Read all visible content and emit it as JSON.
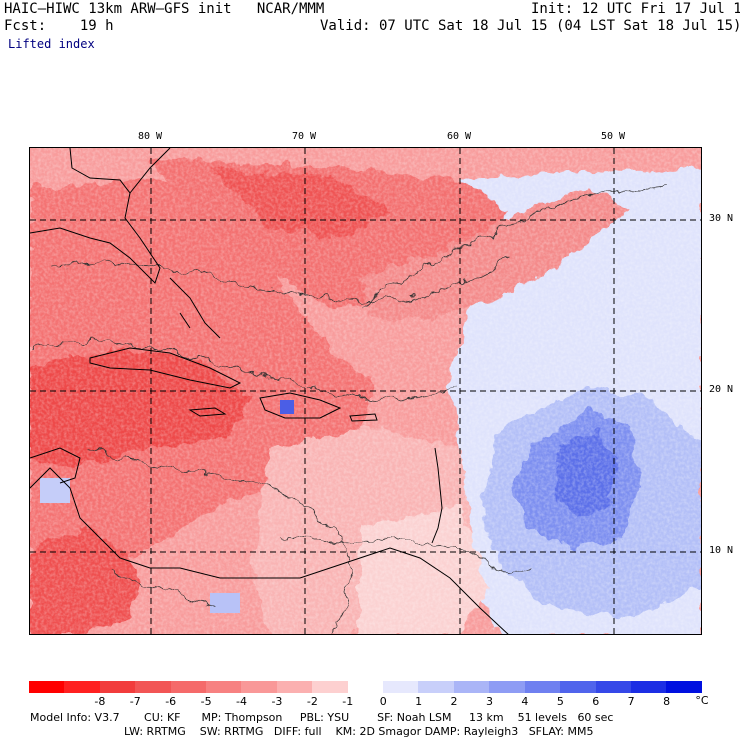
{
  "header": {
    "title": "HAIC–HIWC 13km ARW–GFS init   NCAR/MMM",
    "init": "Init: 12 UTC Fri 17 Jul 15",
    "fcst": "Fcst:    19 h",
    "valid": "Valid: 07 UTC Sat 18 Jul 15 (04 LST Sat 18 Jul 15)",
    "field": "Lifted index"
  },
  "map": {
    "lon_labels": [
      "80 W",
      "70 W",
      "60 W",
      "50 W"
    ],
    "lat_labels": [
      "30 N",
      "20 N",
      "10 N"
    ],
    "colors": {
      "strong_red": "#ee3a3a",
      "red": "#f26a6a",
      "light_red": "#f7a3a3",
      "pale_red": "#fbd0d0",
      "pale_blue": "#cdd6fb",
      "light_blue": "#a7b5f5",
      "blue": "#7c8ef0",
      "deep_blue": "#4e63e6",
      "contour": "#222222",
      "coast": "#000000",
      "grid": "#000000"
    }
  },
  "colorbar": {
    "labels": [
      "-8",
      "-7",
      "-6",
      "-5",
      "-4",
      "-3",
      "-2",
      "-1",
      "0",
      "1",
      "2",
      "3",
      "4",
      "5",
      "6",
      "7",
      "8"
    ],
    "unit": "°C",
    "colors": [
      "#ff0000",
      "#ff2020",
      "#f23c3c",
      "#f25555",
      "#f56a6a",
      "#f78181",
      "#f99898",
      "#fbb0b0",
      "#fdd0d0",
      "#ffffff",
      "#e6e8fd",
      "#c8cffa",
      "#aab5f7",
      "#8e9cf4",
      "#6f80f0",
      "#5064ec",
      "#3548e8",
      "#1c2ee4",
      "#0010e0"
    ]
  },
  "footer": {
    "line1": "Model Info: V3.7       CU: KF      MP: Thompson     PBL: YSU        SF: Noah LSM     13 km    51 levels   60 sec",
    "line2": "LW: RRTMG    SW: RRTMG   DIFF: full    KM: 2D Smagor DAMP: Rayleigh3   SFLAY: MM5"
  }
}
